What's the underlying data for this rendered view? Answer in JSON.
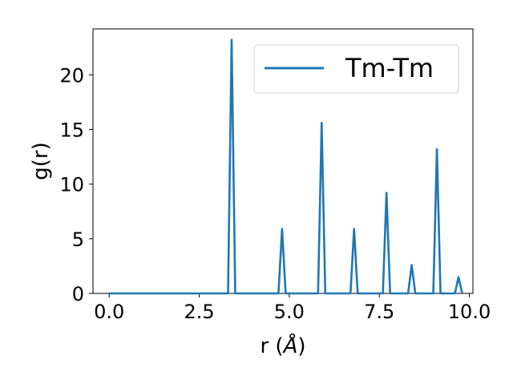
{
  "chart_data": {
    "type": "line",
    "title": "",
    "xlabel": "r (",
    "xlabel_unit": "Å",
    "xlabel_close": ")",
    "ylabel": "g(r)",
    "xlim": [
      -0.45,
      10.1
    ],
    "ylim": [
      0,
      24.2
    ],
    "xticks": [
      0.0,
      2.5,
      5.0,
      7.5,
      10.0
    ],
    "xtick_labels": [
      "0.0",
      "2.5",
      "5.0",
      "7.5",
      "10.0"
    ],
    "yticks": [
      0,
      5,
      10,
      15,
      20
    ],
    "ytick_labels": [
      "0",
      "5",
      "10",
      "15",
      "20"
    ],
    "grid": false,
    "legend_position": "top-right",
    "series": [
      {
        "name": "Tm-Tm",
        "color": "#1f77b4",
        "x": [
          0.0,
          3.3,
          3.4,
          3.5,
          4.7,
          4.8,
          4.9,
          5.8,
          5.9,
          6.0,
          6.7,
          6.8,
          6.9,
          7.6,
          7.7,
          7.8,
          8.3,
          8.4,
          8.5,
          9.0,
          9.1,
          9.2,
          9.6,
          9.7,
          9.8
        ],
        "y": [
          0,
          0,
          23.2,
          0,
          0,
          5.9,
          0,
          0,
          15.6,
          0,
          0,
          5.9,
          0,
          0,
          9.2,
          0,
          0,
          2.6,
          0,
          0,
          13.2,
          0,
          0,
          1.5,
          0
        ]
      }
    ]
  }
}
